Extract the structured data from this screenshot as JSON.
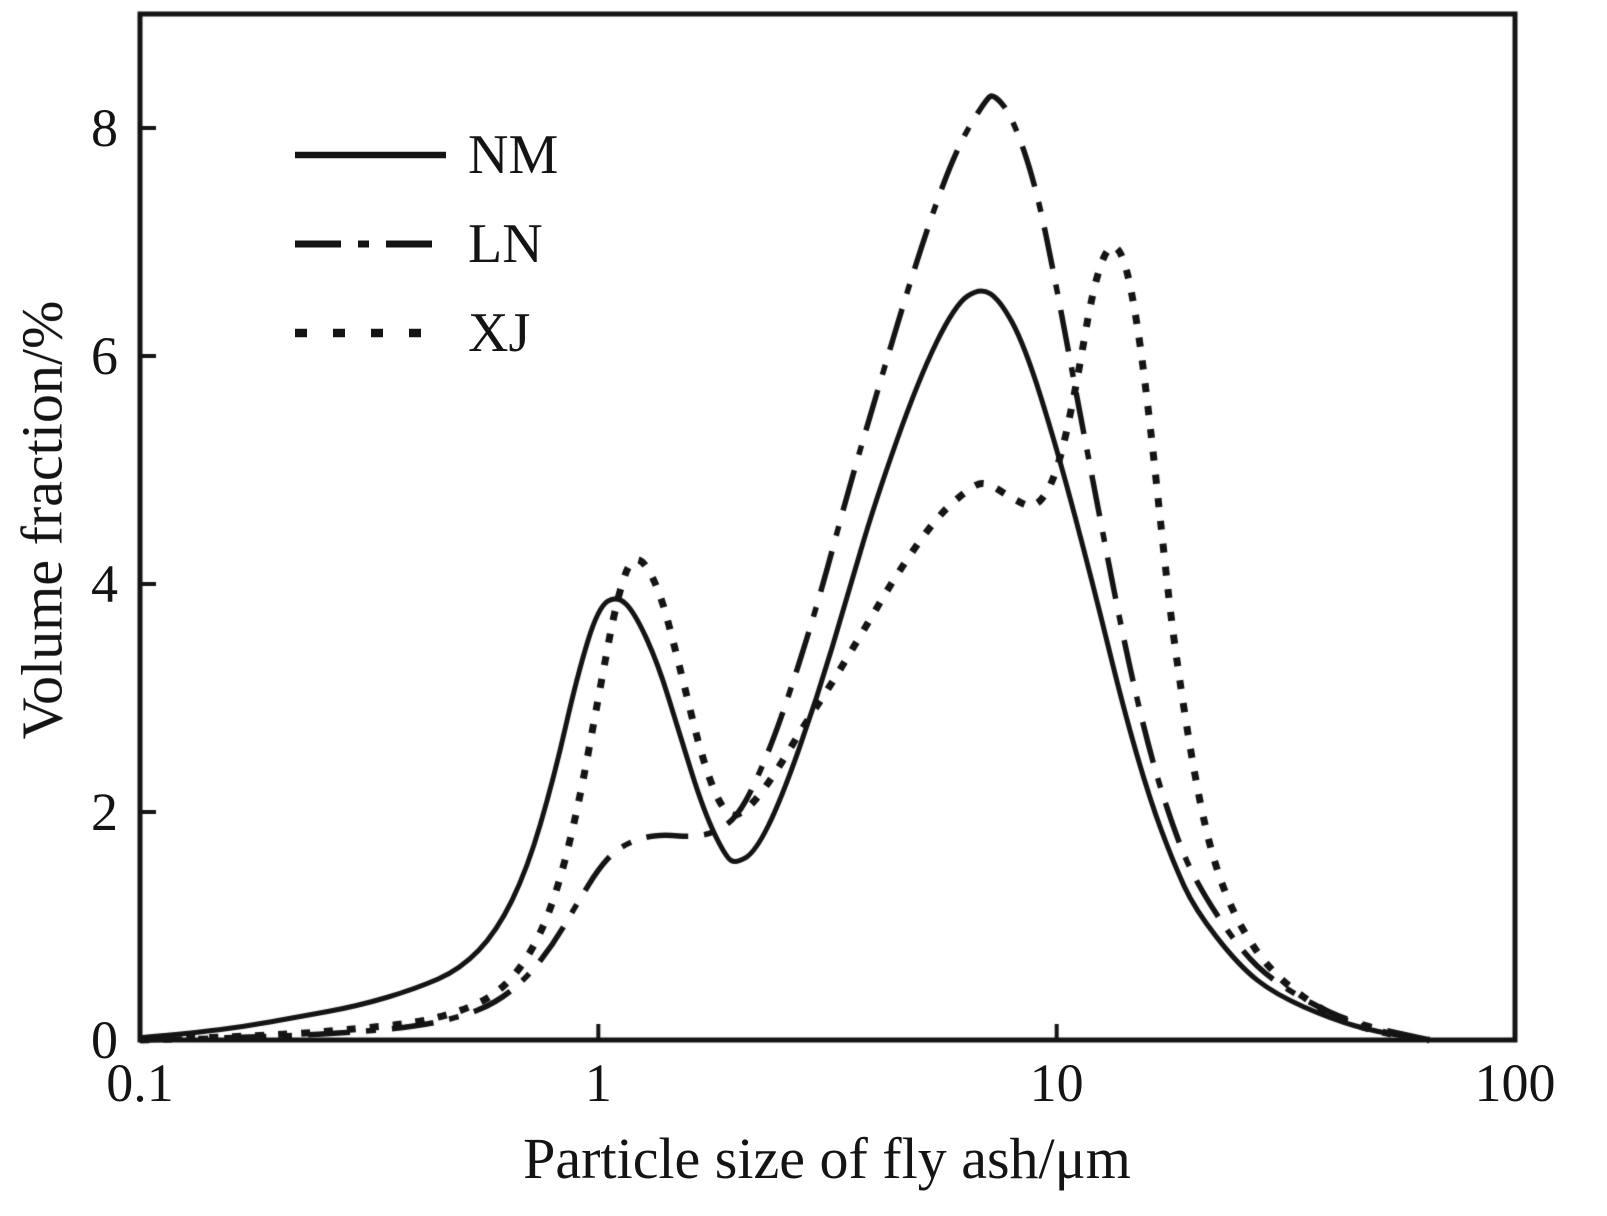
{
  "figure": {
    "background": "#ffffff",
    "line_color": "#141414"
  },
  "chart_data": {
    "type": "line",
    "title": "",
    "xlabel": "Particle size of fly ash/μm",
    "ylabel": "Volume fraction/%",
    "x_scale": "log",
    "xlim": [
      0.1,
      100
    ],
    "ylim": [
      0,
      9
    ],
    "grid": false,
    "legend_position": "top-left",
    "x_ticks": [
      {
        "value": 0.1,
        "label": "0.1"
      },
      {
        "value": 1,
        "label": "1"
      },
      {
        "value": 10,
        "label": "10"
      },
      {
        "value": 100,
        "label": "100"
      }
    ],
    "y_ticks": [
      {
        "value": 0,
        "label": "0"
      },
      {
        "value": 2,
        "label": "2"
      },
      {
        "value": 4,
        "label": "4"
      },
      {
        "value": 6,
        "label": "6"
      },
      {
        "value": 8,
        "label": "8"
      }
    ],
    "series": [
      {
        "name": "NM",
        "style": "solid",
        "dash": [],
        "legend_dash": [],
        "line_width": 5,
        "x": [
          0.1,
          0.13,
          0.17,
          0.22,
          0.3,
          0.4,
          0.5,
          0.6,
          0.7,
          0.8,
          0.9,
          1.0,
          1.1,
          1.2,
          1.35,
          1.5,
          1.7,
          1.9,
          2.0,
          2.2,
          2.5,
          3.0,
          3.5,
          4.0,
          5.0,
          6.0,
          6.8,
          7.5,
          8.5,
          10,
          12,
          14,
          16,
          18,
          20,
          25,
          30,
          40,
          50,
          65
        ],
        "y": [
          0.02,
          0.06,
          0.12,
          0.2,
          0.3,
          0.45,
          0.62,
          0.95,
          1.5,
          2.3,
          3.2,
          3.8,
          3.9,
          3.75,
          3.3,
          2.7,
          2.0,
          1.6,
          1.55,
          1.65,
          2.1,
          3.0,
          3.9,
          4.7,
          5.8,
          6.45,
          6.6,
          6.5,
          6.1,
          5.2,
          4.0,
          2.9,
          2.1,
          1.55,
          1.15,
          0.65,
          0.4,
          0.18,
          0.07,
          0.0
        ]
      },
      {
        "name": "LN",
        "style": "dash-dot",
        "dash": [
          42,
          16,
          10,
          16
        ],
        "legend_dash": [
          46,
          17,
          11,
          17
        ],
        "line_width": 5.5,
        "x": [
          0.1,
          0.2,
          0.3,
          0.4,
          0.5,
          0.6,
          0.7,
          0.8,
          0.9,
          1.0,
          1.1,
          1.25,
          1.4,
          1.6,
          1.8,
          2.0,
          2.2,
          2.5,
          3.0,
          3.5,
          4.0,
          5.0,
          6.0,
          7.0,
          7.3,
          8.0,
          9.0,
          10,
          11,
          12,
          14,
          16,
          18,
          20,
          25,
          30,
          40,
          50,
          65
        ],
        "y": [
          0.0,
          0.03,
          0.07,
          0.12,
          0.2,
          0.33,
          0.55,
          0.85,
          1.2,
          1.5,
          1.68,
          1.78,
          1.8,
          1.78,
          1.82,
          1.95,
          2.25,
          2.8,
          3.8,
          4.8,
          5.6,
          6.9,
          7.8,
          8.25,
          8.3,
          8.1,
          7.5,
          6.6,
          5.7,
          4.9,
          3.5,
          2.5,
          1.85,
          1.4,
          0.8,
          0.5,
          0.22,
          0.1,
          0.0
        ]
      },
      {
        "name": "XJ",
        "style": "dotted",
        "dash": [
          9,
          14
        ],
        "legend_dash": [
          12,
          26
        ],
        "line_width": 7,
        "x": [
          0.1,
          0.2,
          0.3,
          0.4,
          0.5,
          0.6,
          0.7,
          0.8,
          0.9,
          1.0,
          1.1,
          1.2,
          1.35,
          1.5,
          1.7,
          1.9,
          2.1,
          2.4,
          2.8,
          3.2,
          3.8,
          4.5,
          5.5,
          6.5,
          7.0,
          8.0,
          9.0,
          10,
          11,
          12,
          13,
          14,
          15,
          16,
          17,
          18,
          20,
          22,
          25,
          30,
          40,
          50,
          65
        ],
        "y": [
          0.0,
          0.04,
          0.1,
          0.15,
          0.25,
          0.4,
          0.7,
          1.2,
          2.0,
          3.0,
          3.9,
          4.3,
          4.0,
          3.3,
          2.4,
          1.95,
          2.0,
          2.3,
          2.75,
          3.1,
          3.6,
          4.1,
          4.6,
          4.85,
          4.9,
          4.75,
          4.65,
          4.95,
          5.7,
          6.6,
          7.0,
          6.9,
          6.3,
          5.4,
          4.4,
          3.5,
          2.3,
          1.55,
          1.0,
          0.55,
          0.2,
          0.07,
          0.0
        ]
      }
    ]
  }
}
